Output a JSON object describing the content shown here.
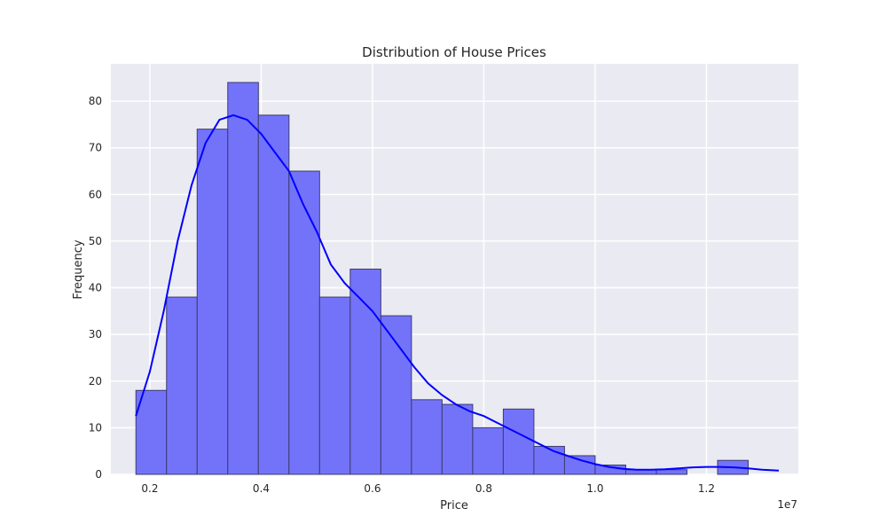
{
  "chart_data": {
    "type": "histogram",
    "title": "Distribution of House Prices",
    "xlabel": "Price",
    "ylabel": "Frequency",
    "x_offset_label": "1e7",
    "xlim": [
      1300000,
      13650000
    ],
    "ylim": [
      0,
      88
    ],
    "x_ticks": [
      {
        "value": 2000000,
        "label": "0.2"
      },
      {
        "value": 4000000,
        "label": "0.4"
      },
      {
        "value": 6000000,
        "label": "0.6"
      },
      {
        "value": 8000000,
        "label": "0.8"
      },
      {
        "value": 10000000,
        "label": "1.0"
      },
      {
        "value": 12000000,
        "label": "1.2"
      }
    ],
    "y_ticks": [
      0,
      10,
      20,
      30,
      40,
      50,
      60,
      70,
      80
    ],
    "bin_start": 1750000,
    "bin_end": 13300000,
    "counts": [
      18,
      38,
      74,
      84,
      77,
      65,
      38,
      44,
      34,
      16,
      15,
      10,
      14,
      6,
      4,
      2,
      1,
      1,
      0,
      3,
      0
    ],
    "kde": {
      "x": [
        1750000,
        2000000,
        2250000,
        2500000,
        2750000,
        3000000,
        3250000,
        3500000,
        3750000,
        4000000,
        4250000,
        4500000,
        4750000,
        5000000,
        5250000,
        5500000,
        5750000,
        6000000,
        6250000,
        6500000,
        6750000,
        7000000,
        7250000,
        7500000,
        7750000,
        8000000,
        8250000,
        8500000,
        8750000,
        9000000,
        9250000,
        9500000,
        9750000,
        10000000,
        10250000,
        10500000,
        10750000,
        11000000,
        11250000,
        11500000,
        11750000,
        12000000,
        12250000,
        12500000,
        12750000,
        13000000,
        13300000
      ],
      "y": [
        12.5,
        22,
        35,
        50,
        62,
        71,
        76,
        77,
        76,
        73,
        69,
        65,
        58,
        52,
        45,
        41,
        38,
        35,
        31,
        27,
        23,
        19.5,
        17,
        15,
        13.5,
        12.5,
        11,
        9.5,
        8,
        6.5,
        5,
        4,
        3,
        2.2,
        1.6,
        1.2,
        1.0,
        1.0,
        1.1,
        1.3,
        1.5,
        1.6,
        1.6,
        1.5,
        1.3,
        1.0,
        0.8
      ]
    },
    "grid": true,
    "colors": {
      "background": "#eaeaf2",
      "grid": "#ffffff",
      "bar_fill": "#7373fa",
      "bar_edge": "#3c3c6e",
      "kde_line": "#0000ff"
    }
  }
}
